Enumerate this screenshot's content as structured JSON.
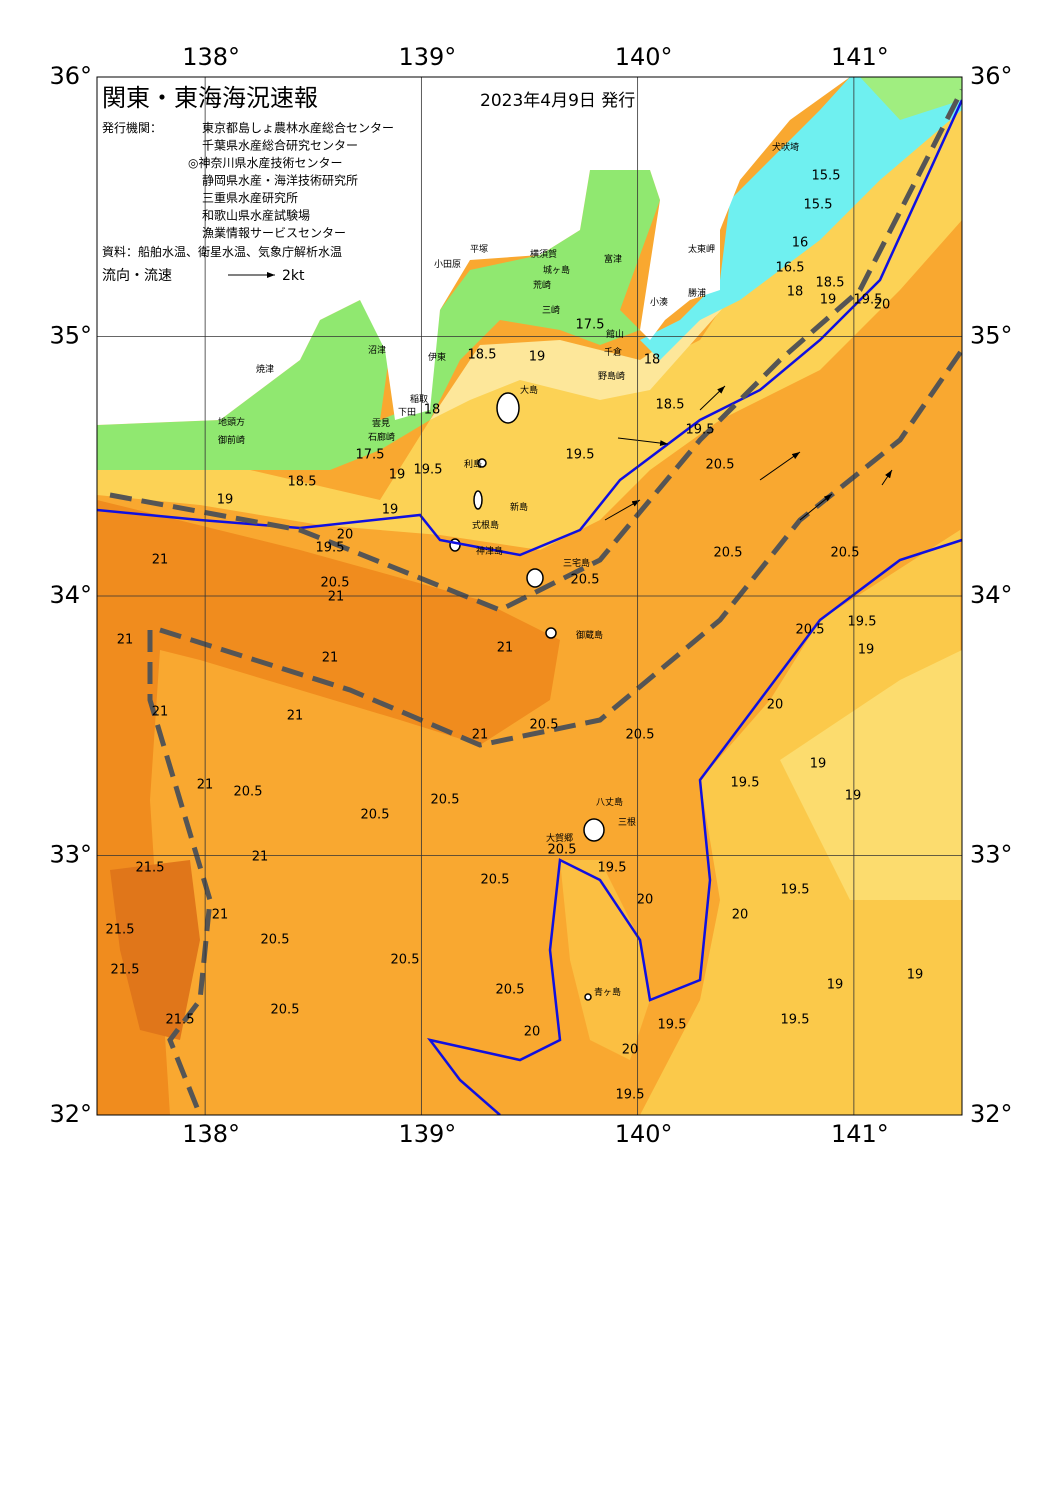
{
  "header": {
    "title": "関東・東海海況速報",
    "issued": "2023年4月9日 発行",
    "publisher_label": "発行機関：",
    "publishers": [
      "東京都島しょ農林水産総合センター",
      "千葉県水産総合研究センター",
      "◎神奈川県水産技術センター",
      "静岡県水産・海洋技術研究所",
      "三重県水産研究所",
      "和歌山県水産試験場",
      "漁業情報サービスセンター"
    ],
    "source": "資料：船舶水温、衛星水温、気象庁解析水温",
    "current_label": "流向・流速",
    "current_scale": "2kt"
  },
  "map": {
    "lon_range": [
      137.5,
      141.5
    ],
    "lat_range": [
      32,
      36
    ],
    "lon_ticks": [
      {
        "value": 138,
        "label": "138°"
      },
      {
        "value": 139,
        "label": "139°"
      },
      {
        "value": 140,
        "label": "140°"
      },
      {
        "value": 141,
        "label": "141°"
      }
    ],
    "lat_ticks": [
      {
        "value": 32,
        "label": "32°"
      },
      {
        "value": 33,
        "label": "33°"
      },
      {
        "value": 34,
        "label": "34°"
      },
      {
        "value": 35,
        "label": "35°"
      },
      {
        "value": 36,
        "label": "36°"
      }
    ],
    "place_names": [
      "犬吠埼",
      "太東岬",
      "勝浦",
      "小湊",
      "富津",
      "横須賀",
      "平塚",
      "小田原",
      "城ヶ島",
      "荒崎",
      "三崎",
      "館山",
      "千倉",
      "野島崎",
      "沼津",
      "伊東",
      "大島",
      "焼津",
      "地頭方",
      "御前崎",
      "雲見",
      "石廊崎",
      "下田",
      "稲取",
      "利島",
      "新島",
      "式根島",
      "神津島",
      "三宅島",
      "御蔵島",
      "八丈島",
      "三根",
      "大賀郷",
      "青ヶ島"
    ],
    "contour_labels": [
      15.5,
      15.5,
      16,
      16.5,
      18.5,
      18,
      19,
      19.5,
      20,
      17.5,
      18,
      18.5,
      19,
      18.5,
      19.5,
      19.5,
      20.5,
      18,
      17.5,
      18.5,
      19.5,
      19,
      19,
      19,
      19.5,
      20,
      20.5,
      21,
      21,
      21,
      21,
      21,
      21,
      21,
      20.5,
      20.5,
      20.5,
      20.5,
      19.5,
      19,
      20.5,
      21,
      20.5,
      20,
      19.5,
      19,
      19,
      20.5,
      20.5,
      20.5,
      21,
      21.5,
      21,
      21,
      21.5,
      21.5,
      21.5,
      20.5,
      20.5,
      20.5,
      20.5,
      20.5,
      20.5,
      19.5,
      20,
      19.5,
      20,
      19.5,
      19,
      19,
      20,
      20,
      19.5,
      19.5
    ]
  }
}
